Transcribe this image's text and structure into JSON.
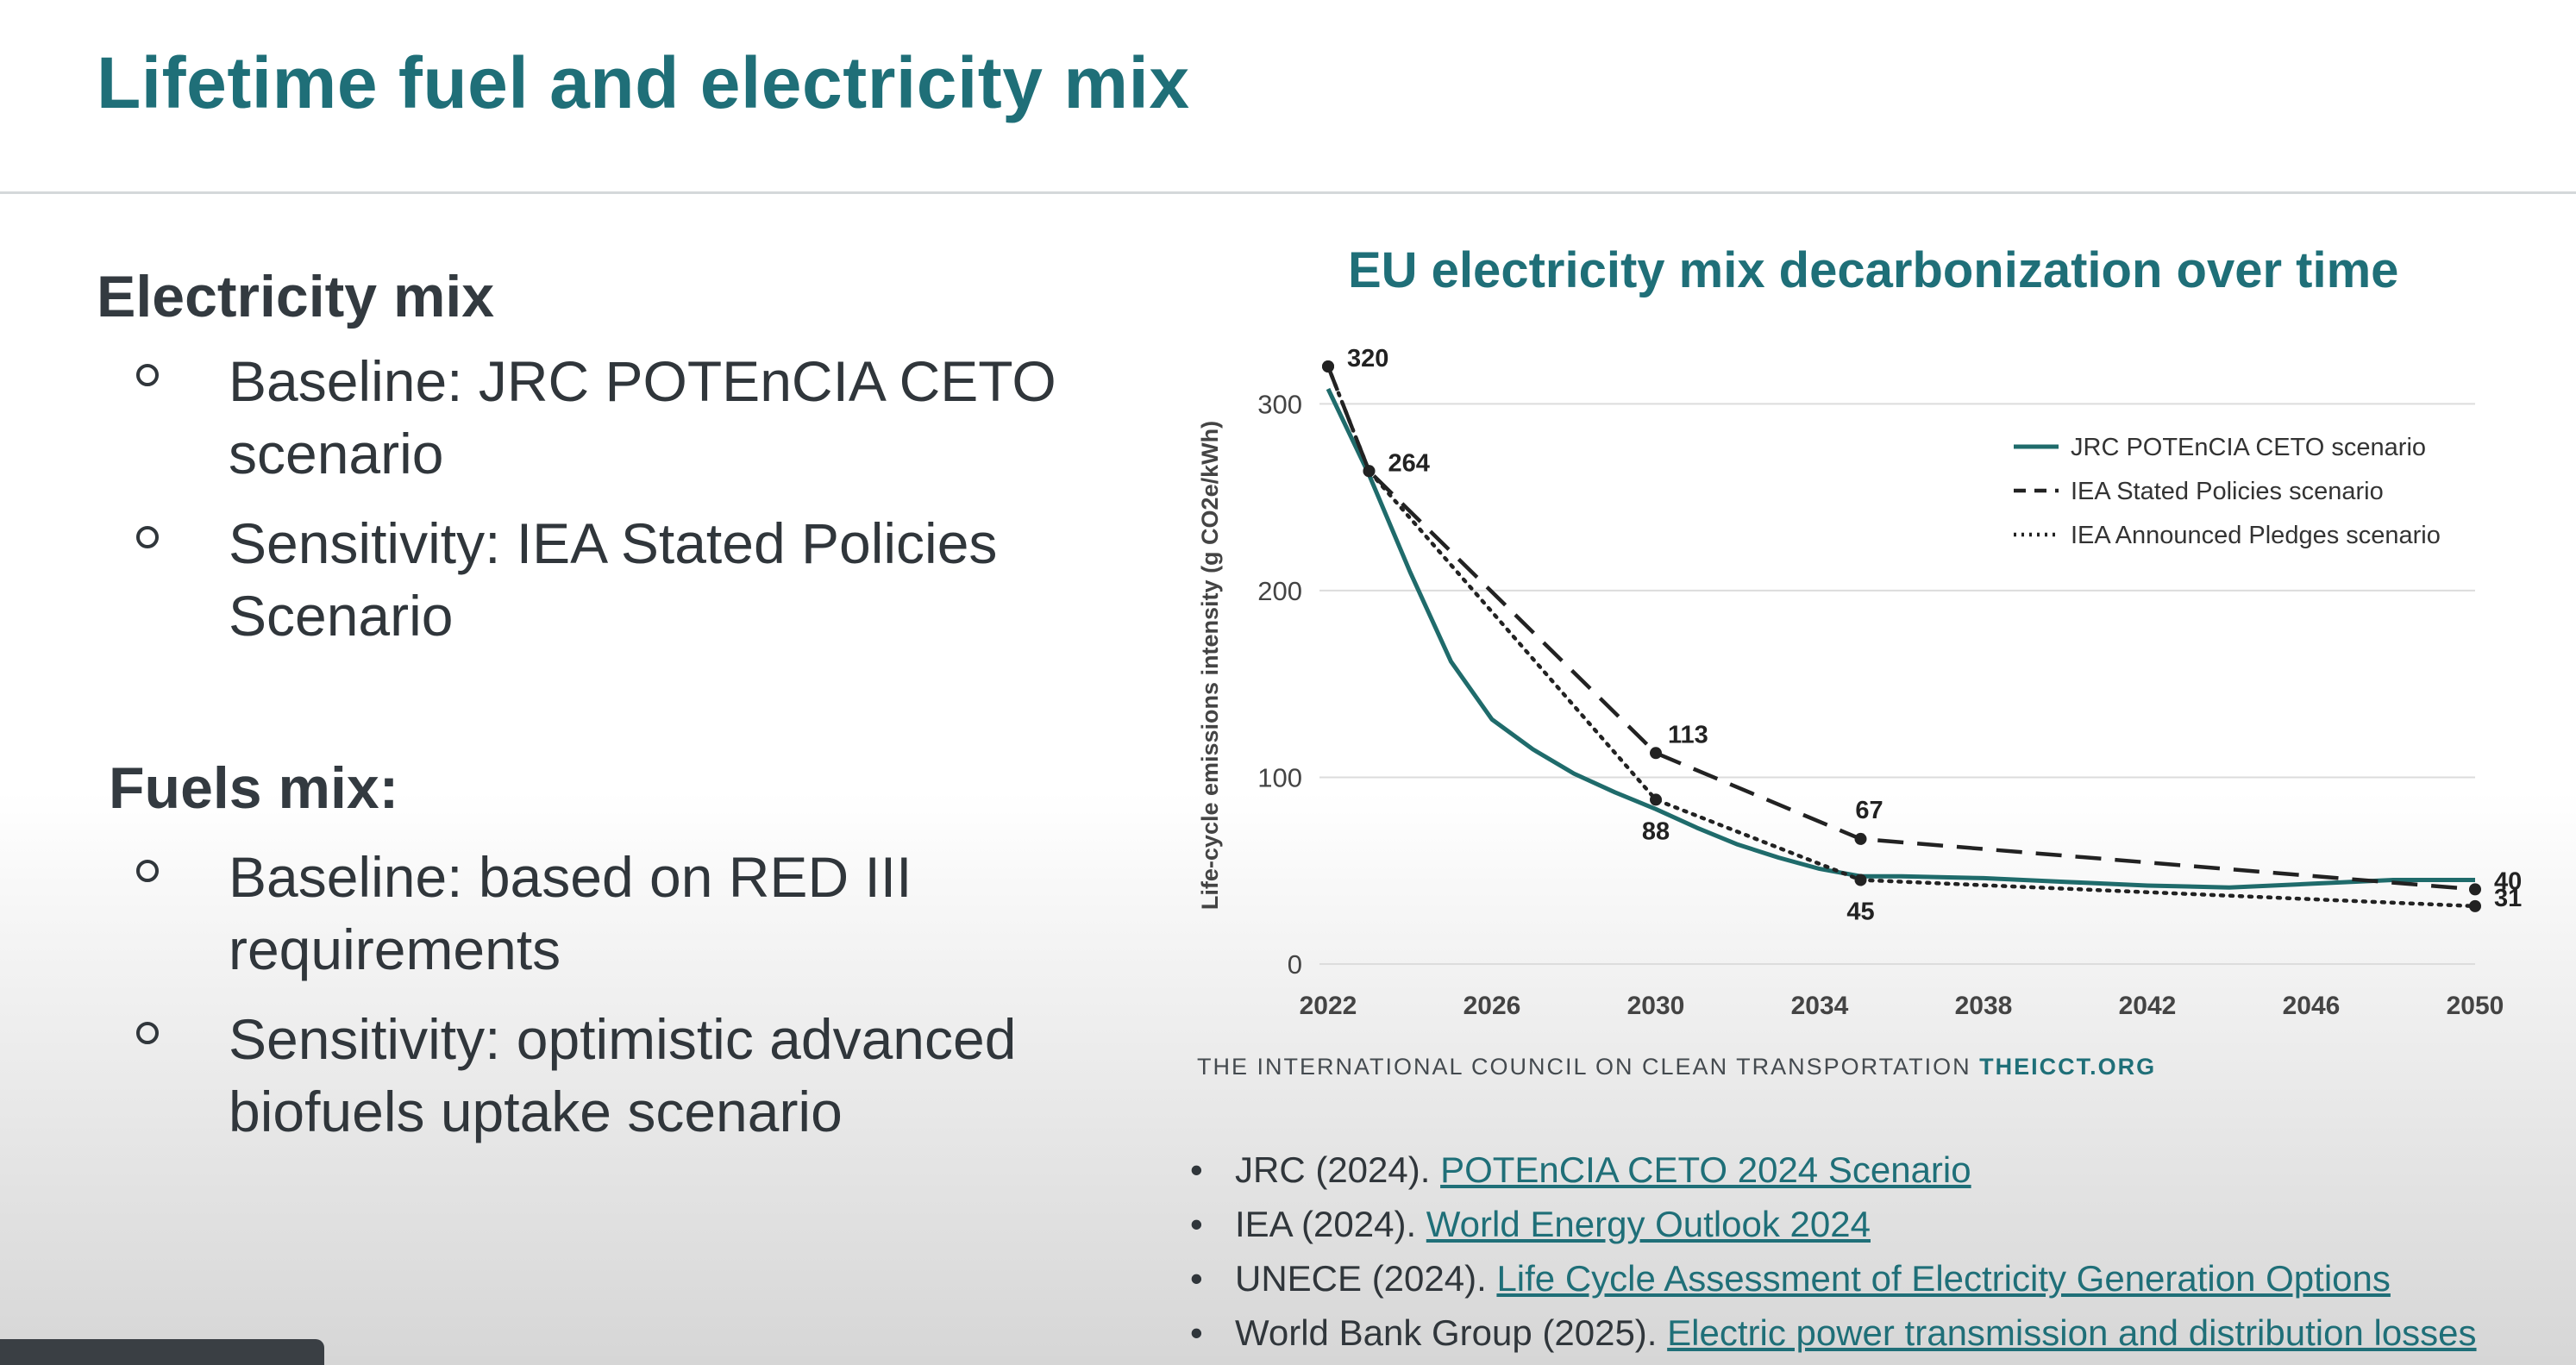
{
  "slide": {
    "title": "Lifetime fuel and electricity mix"
  },
  "electricity": {
    "heading": "Electricity mix",
    "items": [
      "Baseline: JRC POTEnCIA CETO scenario",
      "Sensitivity: IEA Stated Policies Scenario"
    ]
  },
  "fuels": {
    "heading": "Fuels mix:",
    "items": [
      "Baseline: based on RED III requirements",
      "Sensitivity: optimistic advanced biofuels uptake scenario"
    ]
  },
  "chart_title": "EU electricity mix decarbonization over time",
  "chart_data": {
    "type": "line",
    "title": "EU electricity mix decarbonization over time",
    "xlabel": "",
    "ylabel": "Life-cycle emissions intensity (g CO2e/kWh)",
    "xlim": [
      2022,
      2050
    ],
    "ylim": [
      0,
      320
    ],
    "x_ticks": [
      2022,
      2026,
      2030,
      2034,
      2038,
      2042,
      2046,
      2050
    ],
    "y_ticks": [
      0,
      100,
      200,
      300
    ],
    "grid": true,
    "legend_position": "top-right",
    "series": [
      {
        "name": "JRC POTEnCIA CETO scenario",
        "style": "solid",
        "color": "#1f6b6b",
        "x": [
          2022,
          2023,
          2024,
          2025,
          2026,
          2027,
          2028,
          2029,
          2030,
          2031,
          2032,
          2033,
          2034,
          2035,
          2036,
          2038,
          2040,
          2042,
          2044,
          2046,
          2048,
          2050
        ],
        "y": [
          308,
          262,
          210,
          162,
          131,
          115,
          102,
          92,
          83,
          73,
          64,
          57,
          51,
          47,
          47,
          46,
          44,
          42,
          41,
          43,
          45,
          45
        ]
      },
      {
        "name": "IEA Stated Policies scenario",
        "style": "dashed",
        "color": "#222222",
        "x": [
          2022,
          2023,
          2030,
          2035,
          2050
        ],
        "y": [
          320,
          264,
          113,
          67,
          40
        ]
      },
      {
        "name": "IEA Announced Pledges scenario",
        "style": "dotted",
        "color": "#222222",
        "x": [
          2022,
          2023,
          2030,
          2035,
          2050
        ],
        "y": [
          320,
          264,
          88,
          45,
          31
        ]
      }
    ],
    "annotations": [
      {
        "text": "320",
        "x": 2022,
        "y": 320,
        "pos": "right"
      },
      {
        "text": "264",
        "x": 2023,
        "y": 264,
        "pos": "right"
      },
      {
        "text": "113",
        "x": 2030,
        "y": 113,
        "pos": "above-right"
      },
      {
        "text": "88",
        "x": 2030,
        "y": 88,
        "pos": "below"
      },
      {
        "text": "67",
        "x": 2035,
        "y": 67,
        "pos": "above"
      },
      {
        "text": "45",
        "x": 2035,
        "y": 45,
        "pos": "below"
      },
      {
        "text": "40",
        "x": 2050,
        "y": 40,
        "pos": "right"
      },
      {
        "text": "31",
        "x": 2050,
        "y": 31,
        "pos": "right"
      }
    ]
  },
  "credit": {
    "org": "THE INTERNATIONAL COUNCIL ON CLEAN TRANSPORTATION",
    "site": "THEICCT.ORG"
  },
  "references": [
    {
      "source": "JRC (2024).",
      "link": "POTEnCIA CETO 2024 Scenario"
    },
    {
      "source": "IEA (2024).",
      "link": "World Energy Outlook 2024"
    },
    {
      "source": "UNECE (2024).",
      "link": "Life Cycle Assessment of Electricity Generation Options"
    },
    {
      "source": "World Bank Group (2025).",
      "link": "Electric power transmission and distribution losses"
    }
  ],
  "icons": {
    "bullet": "hollow-circle-bullet",
    "reference_bullet": "•"
  }
}
